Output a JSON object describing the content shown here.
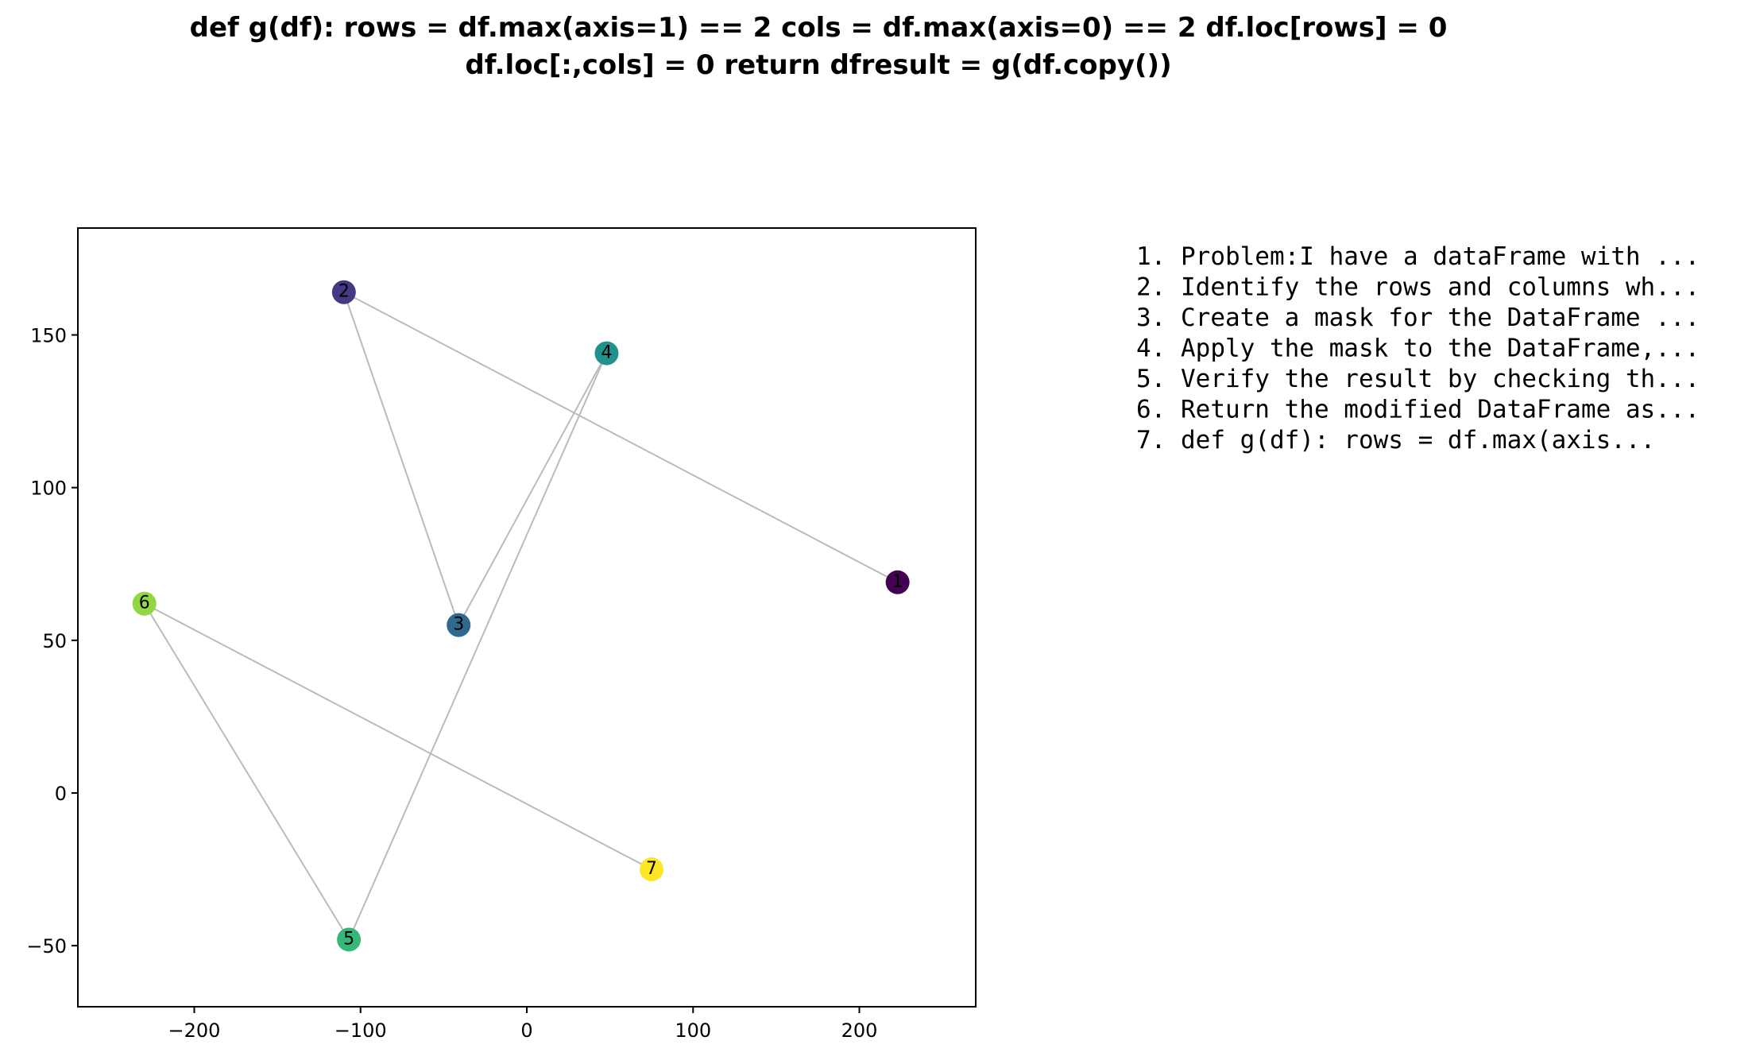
{
  "chart_data": {
    "type": "scatter",
    "title_lines": [
      "def g(df):    rows = df.max(axis=1) == 2    cols = df.max(axis=0) == 2    df.loc[rows] = 0",
      "df.loc[:,cols] = 0    return dfresult = g(df.copy())"
    ],
    "xlabel": "",
    "ylabel": "",
    "xlim": [
      -270,
      270
    ],
    "ylim": [
      -70,
      185
    ],
    "xticks": [
      -200,
      -100,
      0,
      100,
      200
    ],
    "yticks": [
      -50,
      0,
      50,
      100,
      150
    ],
    "grid": false,
    "connect_order": [
      "1",
      "2",
      "3",
      "4",
      "5",
      "6",
      "7"
    ],
    "points": [
      {
        "label": "1",
        "x": 223,
        "y": 69,
        "color": "#440154"
      },
      {
        "label": "2",
        "x": -110,
        "y": 164,
        "color": "#443983"
      },
      {
        "label": "3",
        "x": -41,
        "y": 55,
        "color": "#31688e"
      },
      {
        "label": "4",
        "x": 48,
        "y": 144,
        "color": "#21918c"
      },
      {
        "label": "5",
        "x": -107,
        "y": -48,
        "color": "#35b779"
      },
      {
        "label": "6",
        "x": -230,
        "y": 62,
        "color": "#90d743"
      },
      {
        "label": "7",
        "x": 75,
        "y": -25,
        "color": "#fde725"
      }
    ],
    "line_color": "#bbbbbb"
  },
  "steps": [
    "1. Problem:I have a dataFrame with ...",
    "2. Identify the rows and columns wh...",
    "3. Create a mask for the DataFrame ...",
    "4. Apply the mask to the DataFrame,...",
    "5. Verify the result by checking th...",
    "6. Return the modified DataFrame as...",
    "7. def g(df):    rows = df.max(axis..."
  ]
}
